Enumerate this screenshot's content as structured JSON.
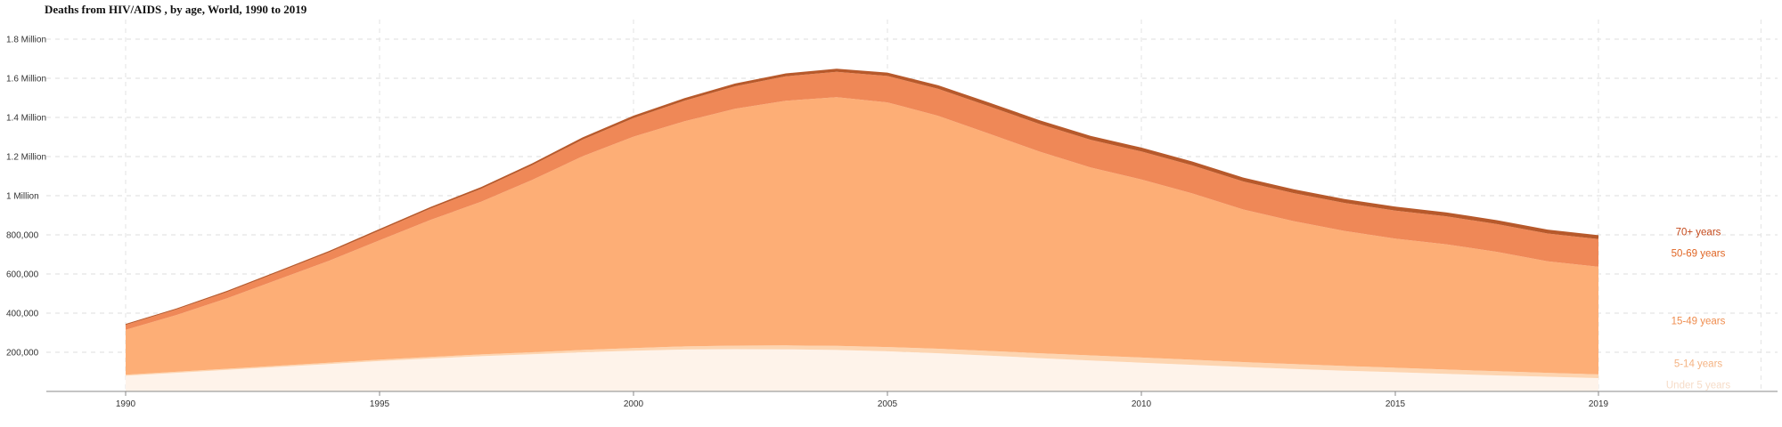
{
  "chart_data": {
    "type": "area",
    "stacked": true,
    "title": "Deaths from HIV/AIDS , by age, World, 1990 to 2019",
    "xlabel": "",
    "ylabel": "",
    "x": [
      1990,
      1991,
      1992,
      1993,
      1994,
      1995,
      1996,
      1997,
      1998,
      1999,
      2000,
      2001,
      2002,
      2003,
      2004,
      2005,
      2006,
      2007,
      2008,
      2009,
      2010,
      2011,
      2012,
      2013,
      2014,
      2015,
      2016,
      2017,
      2018,
      2019
    ],
    "xlim": [
      1988.4,
      2022.5
    ],
    "ylim": [
      0,
      1900000
    ],
    "grid": true,
    "legend_position": "right",
    "x_ticks": [
      {
        "value": 1990,
        "label": "1990"
      },
      {
        "value": 1995,
        "label": "1995"
      },
      {
        "value": 2000,
        "label": "2000"
      },
      {
        "value": 2005,
        "label": "2005"
      },
      {
        "value": 2010,
        "label": "2010"
      },
      {
        "value": 2015,
        "label": "2015"
      },
      {
        "value": 2019,
        "label": "2019"
      }
    ],
    "y_ticks": [
      {
        "value": 200000,
        "label": "200,000"
      },
      {
        "value": 400000,
        "label": "400,000"
      },
      {
        "value": 600000,
        "label": "600,000"
      },
      {
        "value": 800000,
        "label": "800,000"
      },
      {
        "value": 1000000,
        "label": "1 Million"
      },
      {
        "value": 1200000,
        "label": "1.2 Million"
      },
      {
        "value": 1400000,
        "label": "1.4 Million"
      },
      {
        "value": 1600000,
        "label": "1.6 Million"
      },
      {
        "value": 1800000,
        "label": "1.8 Million"
      }
    ],
    "series": [
      {
        "name": "Under 5 years",
        "color": "#fef3ea",
        "label_color": "#f6dcc8",
        "values": [
          80000,
          95000,
          110000,
          125000,
          140000,
          155000,
          168000,
          180000,
          190000,
          200000,
          208000,
          214000,
          216000,
          215000,
          212000,
          205000,
          195000,
          183000,
          170000,
          158000,
          147000,
          136000,
          125000,
          115000,
          106000,
          98000,
          90000,
          82000,
          75000,
          68000
        ]
      },
      {
        "name": "5-14 years",
        "color": "#fdd5b1",
        "label_color": "#f4b383",
        "values": [
          5000,
          5500,
          6000,
          6500,
          7000,
          7500,
          8000,
          9000,
          10000,
          12000,
          14000,
          16000,
          18000,
          20000,
          21000,
          22000,
          23000,
          24000,
          25000,
          26000,
          26000,
          26000,
          25000,
          25000,
          24000,
          23000,
          22000,
          21000,
          20000,
          19000
        ]
      },
      {
        "name": "15-49 years",
        "color": "#fdae76",
        "label_color": "#ef8d4f",
        "values": [
          230000,
          290000,
          360000,
          440000,
          520000,
          610000,
          700000,
          780000,
          880000,
          990000,
          1080000,
          1150000,
          1210000,
          1250000,
          1270000,
          1250000,
          1190000,
          1110000,
          1030000,
          960000,
          910000,
          850000,
          780000,
          730000,
          690000,
          660000,
          640000,
          610000,
          570000,
          550000
        ]
      },
      {
        "name": "50-69 years",
        "color": "#ef8857",
        "label_color": "#e06625",
        "values": [
          25000,
          28000,
          32000,
          37000,
          43000,
          50000,
          58000,
          66000,
          75000,
          85000,
          95000,
          105000,
          115000,
          125000,
          130000,
          135000,
          138000,
          140000,
          141000,
          142000,
          143000,
          143000,
          143000,
          143000,
          143000,
          143000,
          143000,
          142000,
          142000,
          141000
        ]
      },
      {
        "name": "70+ years",
        "color": "#b7592b",
        "label_color": "#c4491b",
        "values": [
          5000,
          5500,
          6000,
          6500,
          7000,
          7500,
          8000,
          9000,
          10000,
          11000,
          12000,
          13000,
          14000,
          15000,
          16000,
          17000,
          18000,
          19000,
          19500,
          20000,
          20000,
          20000,
          20000,
          20000,
          20000,
          20000,
          20000,
          20000,
          20000,
          20000
        ]
      }
    ]
  }
}
